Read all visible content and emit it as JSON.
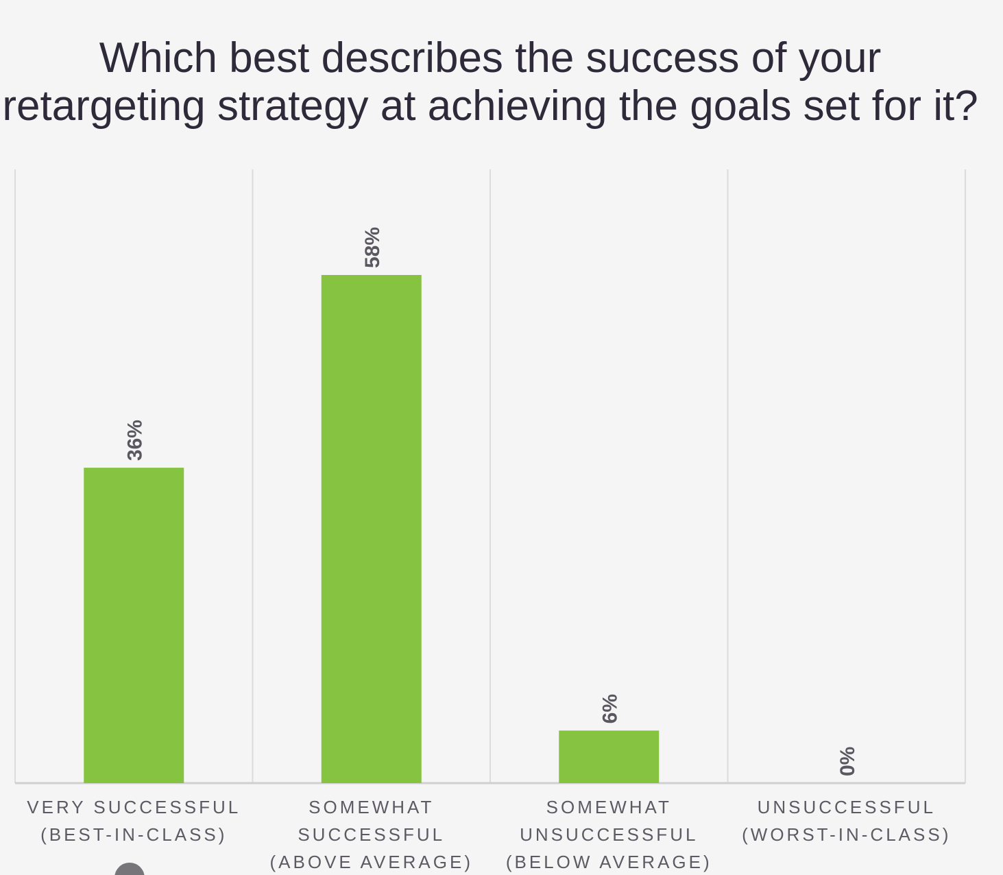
{
  "chart_data": {
    "type": "bar",
    "title_lines": [
      "Which best describes the success of your",
      "retargeting strategy at achieving the goals set for it?"
    ],
    "categories": [
      [
        "VERY SUCCESSFUL",
        "(BEST-IN-CLASS)"
      ],
      [
        "SOMEWHAT",
        "SUCCESSFUL",
        "(ABOVE AVERAGE)"
      ],
      [
        "SOMEWHAT",
        "UNSUCCESSFUL",
        "(BELOW AVERAGE)"
      ],
      [
        "UNSUCCESSFUL",
        "(WORST-IN-CLASS)"
      ]
    ],
    "values": [
      36,
      58,
      6,
      0
    ],
    "value_labels": [
      "36%",
      "58%",
      "6%",
      "0%"
    ],
    "ylim": [
      0,
      70
    ],
    "grid": "vertical category separators",
    "colors": {
      "bar": "#86c341",
      "value_label": "#5a5760",
      "category_label": "#5d5a63",
      "grid": "#dcdcdc",
      "axis": "#d0d0d0",
      "title": "#2f2a3a"
    }
  }
}
